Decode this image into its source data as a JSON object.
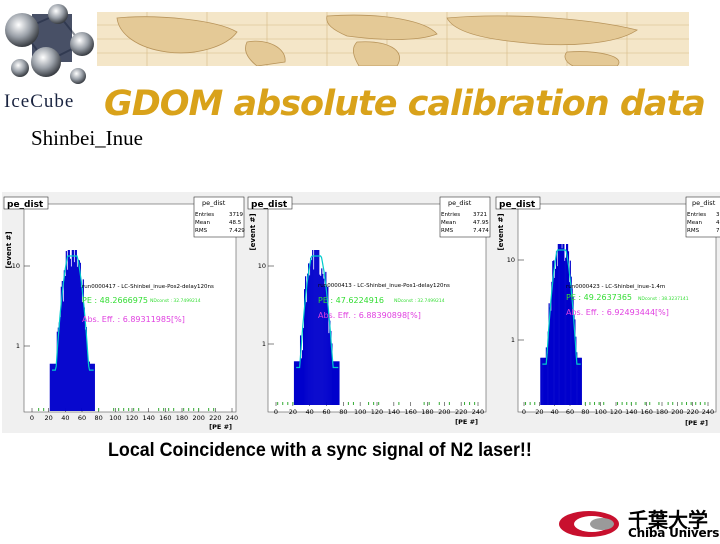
{
  "header": {
    "logo_text": "IceCube",
    "title": "GDOM absolute calibration data",
    "author": "Shinbei_Inue"
  },
  "panels": [
    {
      "hist_name": "pe_dist",
      "stats": {
        "title": "pe_dist",
        "rows": [
          [
            "Entries",
            "3719"
          ],
          [
            "Mean",
            "48.5"
          ],
          [
            "RMS",
            "7.429"
          ]
        ]
      },
      "run_label": "run0000417 - LC-Shinbei_inue-Pos2-delay120ns",
      "pe_label": "PE : 48.2666975",
      "nd_label": "NDconst : 32.7499214",
      "eff_label": "Abs. Eff. : 6.89311985[%]"
    },
    {
      "hist_name": "pe_dist",
      "stats": {
        "title": "pe_dist",
        "rows": [
          [
            "Entries",
            "3721"
          ],
          [
            "Mean",
            "47.95"
          ],
          [
            "RMS",
            "7.474"
          ]
        ]
      },
      "run_label": "run0000413 - LC-Shinbei_inue-Pos1-delay120ns",
      "pe_label": "PE : 47.6224916",
      "nd_label": "NDconst : 32.7499214",
      "eff_label": "Abs. Eff. : 6.88390898[%]"
    },
    {
      "hist_name": "pe_dist",
      "stats": {
        "title": "pe_dist",
        "rows": [
          [
            "Entries",
            "3"
          ],
          [
            "Mean",
            "4"
          ],
          [
            "RMS",
            "7"
          ]
        ]
      },
      "run_label": "run0000423 - LC-Shinbei_inue-1.4m",
      "pe_label": "PE : 49.2637365",
      "nd_label": "NDconst : 38.3237141",
      "eff_label": "Abs. Eff. : 6.92493444[%]"
    }
  ],
  "axes": {
    "ylabel": "[event #]",
    "xlabel": "[PE #]",
    "xticks": [
      "0",
      "20",
      "40",
      "60",
      "80",
      "100",
      "120",
      "140",
      "160",
      "180",
      "200",
      "220",
      "240"
    ],
    "yticks": [
      "10",
      "1"
    ]
  },
  "caption": "Local Coincidence with a sync signal of N2 laser!!",
  "footer": {
    "univ_jp": "千葉大学",
    "univ_en": "Chiba University"
  },
  "colors": {
    "title": "#d9a21a",
    "histogram": "#0000cc",
    "fit": "#33dd33",
    "fit_curve": "#00cccc",
    "annotation": "#e040e0",
    "univ_red": "#c8102e"
  }
}
